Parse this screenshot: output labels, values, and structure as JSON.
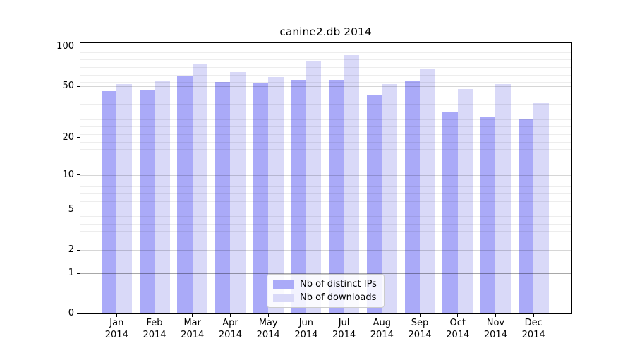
{
  "title": "canine2.db 2014",
  "chart_data": {
    "type": "bar",
    "title": "canine2.db 2014",
    "months": [
      "Jan",
      "Feb",
      "Mar",
      "Apr",
      "May",
      "Jun",
      "Jul",
      "Aug",
      "Sep",
      "Oct",
      "Nov",
      "Dec"
    ],
    "year": "2014",
    "categories": [
      "Jan 2014",
      "Feb 2014",
      "Mar 2014",
      "Apr 2014",
      "May 2014",
      "Jun 2014",
      "Jul 2014",
      "Aug 2014",
      "Sep 2014",
      "Oct 2014",
      "Nov 2014",
      "Dec 2014"
    ],
    "series": [
      {
        "name": "Nb of distinct IPs",
        "values": [
          46,
          47,
          60,
          54,
          53,
          56,
          56,
          43,
          55,
          32,
          29,
          28
        ]
      },
      {
        "name": "Nb of downloads",
        "values": [
          52,
          55,
          75,
          64,
          59,
          78,
          87,
          52,
          68,
          48,
          52,
          37
        ]
      }
    ],
    "yscale": "log1p",
    "yticks": [
      100,
      50,
      20,
      10,
      5,
      2,
      1,
      0
    ],
    "yticklabels": [
      "100",
      "50",
      "20",
      "10",
      "5",
      "2",
      "1",
      "0"
    ],
    "ylim": [
      0,
      110
    ],
    "grid": "horizontal major+minor",
    "legend_position": "lower center"
  },
  "legend": {
    "items": [
      {
        "label": "Nb of distinct IPs",
        "color": "#aaaaf8"
      },
      {
        "label": "Nb of downloads",
        "color": "#d9d9f8"
      }
    ]
  },
  "colors": {
    "bar_distinct_ips": "#aaaaf8",
    "bar_downloads": "#d9d9f8",
    "axis": "#000000",
    "grid_major": "rgba(0,0,0,0.16)",
    "grid_minor": "rgba(0,0,0,0.07)",
    "grid_unit_line": "rgba(0,0,0,0.34)",
    "background": "#ffffff"
  }
}
